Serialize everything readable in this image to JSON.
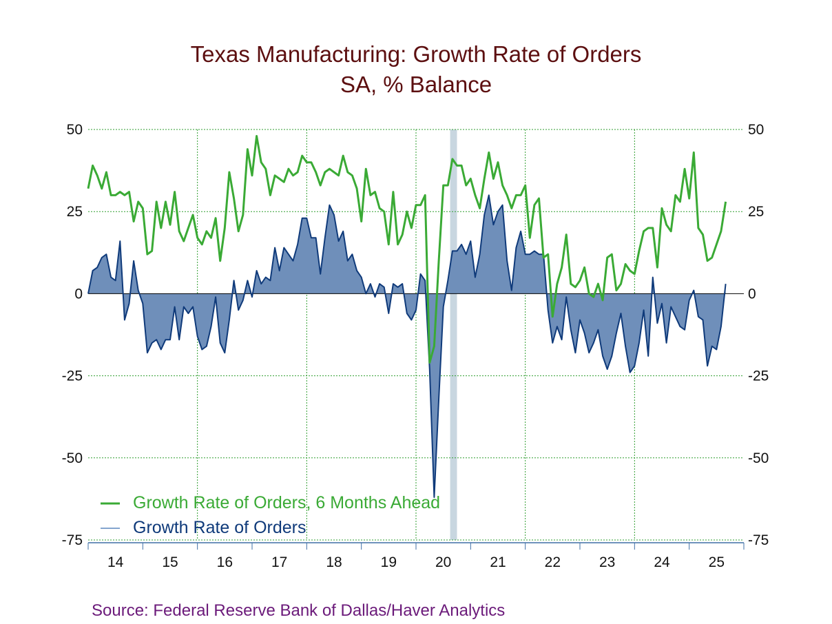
{
  "chart_data": {
    "type": "line",
    "title": "Texas Manufacturing: Growth Rate of Orders",
    "subtitle": "SA, % Balance",
    "source": "Source:  Federal Reserve Bank of Dallas/Haver Analytics",
    "ylim": [
      -75,
      50
    ],
    "y_ticks": [
      "50",
      "25",
      "0",
      "-25",
      "-50",
      "-75"
    ],
    "y_tick_values": [
      50,
      25,
      0,
      -25,
      -50,
      -75
    ],
    "x_start": 2013.5,
    "x_end": 2025.5,
    "x_tick_labels": [
      "14",
      "15",
      "16",
      "17",
      "18",
      "19",
      "20",
      "21",
      "22",
      "23",
      "24",
      "25"
    ],
    "x_tick_years": [
      2014,
      2015,
      2016,
      2017,
      2018,
      2019,
      2020,
      2021,
      2022,
      2023,
      2024,
      2025
    ],
    "vertical_gridline_years": [
      2015.5,
      2017.5,
      2019.5,
      2021.5,
      2023.5
    ],
    "recession_shading": [
      {
        "start": 2020.125,
        "end": 2020.25
      }
    ],
    "grid": true,
    "legend_placement": "bottom-left",
    "colors": {
      "future": "#3aaa35",
      "orders_line": "#0f3a7a",
      "orders_fill": "#6f8fba",
      "grid": "#2e9d2e",
      "recession": "#c8d6e0",
      "title": "#5c0f10",
      "source": "#6b1a7a",
      "axis": "#3f6fa6"
    },
    "series": [
      {
        "name": "Growth Rate of Orders, 6 Months Ahead",
        "x_start": 2013.5,
        "step_months": 1,
        "values": [
          32,
          39,
          36,
          32,
          37,
          30,
          30,
          31,
          30,
          31,
          22,
          28,
          26,
          12,
          13,
          28,
          20,
          28,
          21,
          31,
          19,
          16,
          20,
          24,
          17,
          15,
          19,
          17,
          23,
          10,
          20,
          37,
          29,
          19,
          24,
          44,
          36,
          48,
          40,
          38,
          30,
          36,
          35,
          34,
          38,
          36,
          37,
          42,
          40,
          40,
          37,
          33,
          37,
          38,
          37,
          36,
          42,
          37,
          36,
          32,
          22,
          38,
          30,
          31,
          26,
          25,
          15,
          31,
          15,
          18,
          25,
          20,
          27,
          27,
          30,
          -21,
          -16,
          10,
          33,
          33,
          41,
          39,
          39,
          33,
          35,
          30,
          26,
          35,
          43,
          35,
          40,
          33,
          30,
          26,
          30,
          30,
          33,
          17,
          27,
          29,
          11,
          12,
          -7,
          3,
          8,
          18,
          3,
          2,
          4,
          8,
          0,
          -1,
          3,
          -2,
          11,
          12,
          1,
          3,
          9,
          7,
          6,
          13,
          19,
          20,
          20,
          8,
          26,
          21,
          19,
          30,
          28,
          38,
          29,
          43,
          20,
          18,
          10,
          11,
          15,
          19,
          28
        ]
      },
      {
        "name": "Growth Rate of Orders",
        "x_start": 2013.5,
        "step_months": 1,
        "values": [
          0,
          7,
          8,
          11,
          12,
          5,
          4,
          16,
          -8,
          -3,
          10,
          1,
          -3,
          -18,
          -15,
          -14,
          -17,
          -14,
          -14,
          -4,
          -14,
          -4,
          -6,
          -4,
          -13,
          -17,
          -16,
          -10,
          -1,
          -15,
          -18,
          -8,
          4,
          -5,
          -2,
          4,
          -1,
          7,
          3,
          5,
          4,
          14,
          7,
          14,
          12,
          10,
          15,
          23,
          23,
          17,
          17,
          6,
          17,
          27,
          24,
          16,
          19,
          10,
          12,
          7,
          5,
          0,
          3,
          -1,
          3,
          2,
          -6,
          3,
          2,
          3,
          -6,
          -8,
          -5,
          6,
          4,
          -23,
          -62,
          -32,
          -4,
          4,
          13,
          13,
          15,
          12,
          16,
          5,
          12,
          24,
          30,
          21,
          25,
          27,
          10,
          1,
          14,
          19,
          12,
          12,
          13,
          12,
          12,
          -5,
          -15,
          -10,
          -14,
          -1,
          -11,
          -18,
          -8,
          -12,
          -18,
          -15,
          -11,
          -19,
          -23,
          -19,
          -12,
          -6,
          -16,
          -24,
          -22,
          -15,
          -5,
          -19,
          5,
          -9,
          -3,
          -15,
          -4,
          -7,
          -10,
          -11,
          -2,
          1,
          -7,
          -8,
          -22,
          -16,
          -17,
          -10,
          3
        ]
      }
    ]
  }
}
